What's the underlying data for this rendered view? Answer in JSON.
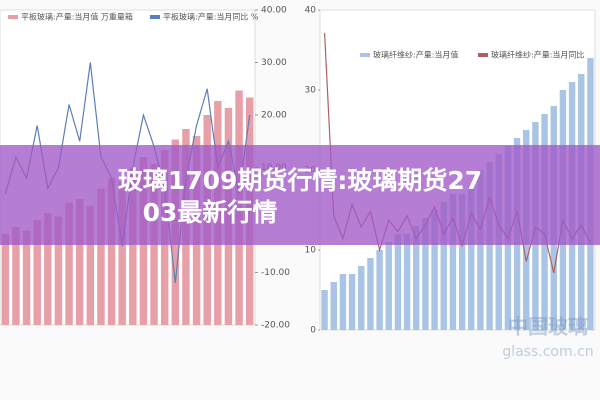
{
  "banner": {
    "title": "玻璃1709期货行情:玻璃期货2703最新行情"
  },
  "watermark": {
    "main": "中国玻璃",
    "sub": "glass.com.cn"
  },
  "chart_data": [
    {
      "type": "bar-line",
      "series": [
        {
          "name": "平板玻璃:产量:当月值 万重量箱",
          "color": "#e8a0a8",
          "values": [
            2600,
            2800,
            2700,
            3000,
            3200,
            3100,
            3500,
            3600,
            3400,
            3900,
            4200,
            4100,
            4500,
            4800,
            4600,
            5000,
            5300,
            5600,
            5400,
            6000,
            6400,
            6200,
            6700,
            6500
          ]
        },
        {
          "name": "平板玻璃:产量:当月同比 %",
          "color": "#5b7fb8",
          "axis": "y2",
          "values": [
            5,
            12,
            8,
            18,
            6,
            10,
            22,
            15,
            30,
            12,
            8,
            -5,
            10,
            20,
            14,
            6,
            -12,
            8,
            18,
            25,
            10,
            15,
            5,
            20
          ]
        }
      ],
      "ylim": [
        0,
        9000
      ],
      "y2lim": [
        -20,
        40
      ],
      "y2ticks": [
        {
          "value": 40,
          "label": "40.00"
        },
        {
          "value": 30,
          "label": "30.00"
        },
        {
          "value": 20,
          "label": "20.00"
        },
        {
          "value": 10,
          "label": "10.00"
        },
        {
          "value": -10,
          "label": "-10.00"
        },
        {
          "value": -20,
          "label": "-20.00"
        }
      ]
    },
    {
      "type": "bar-line",
      "series": [
        {
          "name": "玻璃纤维纱:产量:当月值",
          "color": "#a9c4e4",
          "values": [
            5,
            6,
            7,
            7,
            8,
            9,
            10,
            11,
            12,
            12,
            13,
            14,
            15,
            16,
            17,
            17,
            18,
            20,
            21,
            22,
            23,
            24,
            25,
            26,
            27,
            28,
            30,
            31,
            32,
            34
          ]
        },
        {
          "name": "玻璃纤维纱:产量:当月同比",
          "color": "#b06060",
          "axis": "y2",
          "values": [
            90,
            10,
            0,
            15,
            5,
            12,
            -5,
            8,
            3,
            10,
            0,
            6,
            14,
            2,
            9,
            -3,
            11,
            4,
            18,
            6,
            0,
            12,
            -10,
            5,
            2,
            -15,
            8,
            0,
            6,
            -2
          ]
        }
      ],
      "ylim": [
        0,
        40
      ],
      "yticks": [
        0,
        10,
        20,
        30,
        40
      ],
      "y2lim": [
        -40,
        100
      ]
    }
  ]
}
